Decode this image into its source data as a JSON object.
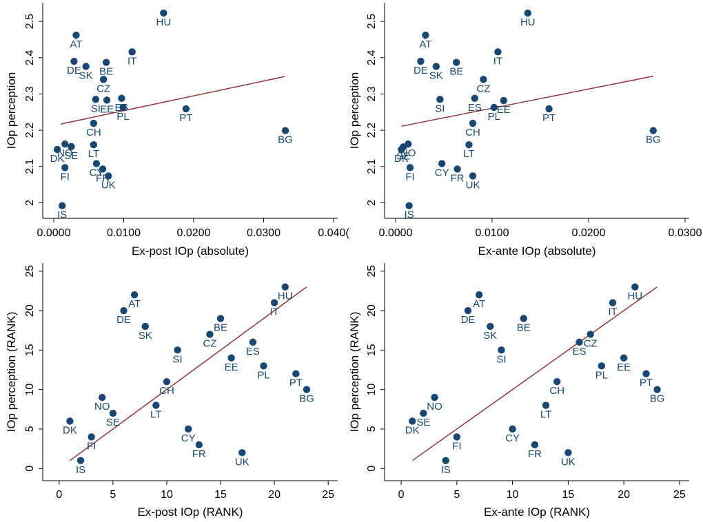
{
  "chart_data": [
    {
      "type": "scatter",
      "xlabel": "Ex-post IOp (absolute)",
      "ylabel": "IOp perception",
      "xlim": [
        0.0,
        0.04
      ],
      "ylim": [
        1.98,
        2.54
      ],
      "xticks": [
        0.0,
        0.01,
        0.02,
        0.03,
        0.04
      ],
      "xtick_labels": [
        "0.0000",
        "0.0100",
        "0.0200",
        "0.0300",
        "0.040("
      ],
      "yticks": [
        2.0,
        2.1,
        2.2,
        2.3,
        2.4,
        2.5
      ],
      "ytick_labels": [
        "2",
        "2.1",
        "2.2",
        "2.3",
        "2.4",
        "2.5"
      ],
      "fit_line": [
        [
          0.001,
          2.217
        ],
        [
          0.033,
          2.348
        ]
      ],
      "points": [
        {
          "label": "HU",
          "x": 0.0157,
          "y": 2.523
        },
        {
          "label": "AT",
          "x": 0.0032,
          "y": 2.462
        },
        {
          "label": "IT",
          "x": 0.0112,
          "y": 2.416
        },
        {
          "label": "DE",
          "x": 0.0029,
          "y": 2.39
        },
        {
          "label": "BE",
          "x": 0.0075,
          "y": 2.387
        },
        {
          "label": "SK",
          "x": 0.0046,
          "y": 2.376
        },
        {
          "label": "CZ",
          "x": 0.0071,
          "y": 2.34
        },
        {
          "label": "SI",
          "x": 0.006,
          "y": 2.285
        },
        {
          "label": "EE",
          "x": 0.0076,
          "y": 2.283
        },
        {
          "label": "ES",
          "x": 0.0097,
          "y": 2.288
        },
        {
          "label": "PL",
          "x": 0.0099,
          "y": 2.263
        },
        {
          "label": "PT",
          "x": 0.0189,
          "y": 2.259
        },
        {
          "label": "CH",
          "x": 0.0057,
          "y": 2.219
        },
        {
          "label": "BG",
          "x": 0.0331,
          "y": 2.199
        },
        {
          "label": "LT",
          "x": 0.0057,
          "y": 2.16
        },
        {
          "label": "NO",
          "x": 0.0016,
          "y": 2.162
        },
        {
          "label": "SE",
          "x": 0.0025,
          "y": 2.155
        },
        {
          "label": "DK",
          "x": 0.0005,
          "y": 2.147
        },
        {
          "label": "CY",
          "x": 0.0061,
          "y": 2.108
        },
        {
          "label": "FI",
          "x": 0.0016,
          "y": 2.097
        },
        {
          "label": "FR",
          "x": 0.007,
          "y": 2.093
        },
        {
          "label": "UK",
          "x": 0.0078,
          "y": 2.074
        },
        {
          "label": "IS",
          "x": 0.0012,
          "y": 1.992
        }
      ]
    },
    {
      "type": "scatter",
      "xlabel": "Ex-ante IOp (absolute)",
      "ylabel": "IOp perception",
      "xlim": [
        0.0,
        0.03
      ],
      "ylim": [
        1.98,
        2.54
      ],
      "xticks": [
        0.0,
        0.01,
        0.02,
        0.03
      ],
      "xtick_labels": [
        "0.0000",
        "0.0100",
        "0.0200",
        "0.0300"
      ],
      "yticks": [
        2.0,
        2.1,
        2.2,
        2.3,
        2.4,
        2.5
      ],
      "ytick_labels": [
        "2",
        "2.1",
        "2.2",
        "2.3",
        "2.4",
        "2.5"
      ],
      "fit_line": [
        [
          0.0006,
          2.211
        ],
        [
          0.0267,
          2.349
        ]
      ],
      "points": [
        {
          "label": "HU",
          "x": 0.0137,
          "y": 2.523
        },
        {
          "label": "AT",
          "x": 0.0031,
          "y": 2.462
        },
        {
          "label": "IT",
          "x": 0.0106,
          "y": 2.416
        },
        {
          "label": "DE",
          "x": 0.0026,
          "y": 2.39
        },
        {
          "label": "BE",
          "x": 0.0063,
          "y": 2.387
        },
        {
          "label": "SK",
          "x": 0.0042,
          "y": 2.376
        },
        {
          "label": "CZ",
          "x": 0.0091,
          "y": 2.34
        },
        {
          "label": "SI",
          "x": 0.0046,
          "y": 2.285
        },
        {
          "label": "ES",
          "x": 0.0082,
          "y": 2.288
        },
        {
          "label": "EE",
          "x": 0.0112,
          "y": 2.282
        },
        {
          "label": "PL",
          "x": 0.0102,
          "y": 2.263
        },
        {
          "label": "PT",
          "x": 0.0159,
          "y": 2.259
        },
        {
          "label": "CH",
          "x": 0.008,
          "y": 2.219
        },
        {
          "label": "BG",
          "x": 0.0267,
          "y": 2.199
        },
        {
          "label": "LT",
          "x": 0.0076,
          "y": 2.16
        },
        {
          "label": "NO",
          "x": 0.0013,
          "y": 2.162
        },
        {
          "label": "SE",
          "x": 0.0008,
          "y": 2.154
        },
        {
          "label": "DK",
          "x": 0.0006,
          "y": 2.147
        },
        {
          "label": "CY",
          "x": 0.0048,
          "y": 2.108
        },
        {
          "label": "FI",
          "x": 0.0015,
          "y": 2.097
        },
        {
          "label": "FR",
          "x": 0.0064,
          "y": 2.093
        },
        {
          "label": "UK",
          "x": 0.008,
          "y": 2.074
        },
        {
          "label": "IS",
          "x": 0.0014,
          "y": 1.992
        }
      ]
    },
    {
      "type": "scatter",
      "xlabel": "Ex-post IOp (RANK)",
      "ylabel": "IOp perception (RANK)",
      "xlim": [
        -0.5,
        25.5
      ],
      "ylim": [
        -0.5,
        25.5
      ],
      "xticks": [
        0,
        5,
        10,
        15,
        20,
        25
      ],
      "xtick_labels": [
        "0",
        "5",
        "10",
        "15",
        "20",
        "25"
      ],
      "yticks": [
        0,
        5,
        10,
        15,
        20,
        25
      ],
      "ytick_labels": [
        "0",
        "5",
        "10",
        "15",
        "20",
        "25"
      ],
      "fit_line": [
        [
          1,
          1
        ],
        [
          23,
          23
        ]
      ],
      "points": [
        {
          "label": "HU",
          "x": 21,
          "y": 23
        },
        {
          "label": "AT",
          "x": 7,
          "y": 22
        },
        {
          "label": "IT",
          "x": 20,
          "y": 21
        },
        {
          "label": "DE",
          "x": 6,
          "y": 20
        },
        {
          "label": "BE",
          "x": 15,
          "y": 19
        },
        {
          "label": "SK",
          "x": 8,
          "y": 18
        },
        {
          "label": "CZ",
          "x": 14,
          "y": 17
        },
        {
          "label": "ES",
          "x": 18,
          "y": 16
        },
        {
          "label": "SI",
          "x": 11,
          "y": 15
        },
        {
          "label": "EE",
          "x": 16,
          "y": 14
        },
        {
          "label": "PL",
          "x": 19,
          "y": 13
        },
        {
          "label": "PT",
          "x": 22,
          "y": 12
        },
        {
          "label": "CH",
          "x": 10,
          "y": 11
        },
        {
          "label": "BG",
          "x": 23,
          "y": 10
        },
        {
          "label": "NO",
          "x": 4,
          "y": 9
        },
        {
          "label": "LT",
          "x": 9,
          "y": 8
        },
        {
          "label": "SE",
          "x": 5,
          "y": 7
        },
        {
          "label": "DK",
          "x": 1,
          "y": 6
        },
        {
          "label": "CY",
          "x": 12,
          "y": 5
        },
        {
          "label": "FI",
          "x": 3,
          "y": 4
        },
        {
          "label": "FR",
          "x": 13,
          "y": 3
        },
        {
          "label": "UK",
          "x": 17,
          "y": 2
        },
        {
          "label": "IS",
          "x": 2,
          "y": 1
        }
      ]
    },
    {
      "type": "scatter",
      "xlabel": "Ex-ante IOp (RANK)",
      "ylabel": "IOp perception (RANK)",
      "xlim": [
        -0.5,
        25.5
      ],
      "ylim": [
        -0.5,
        25.5
      ],
      "xticks": [
        0,
        5,
        10,
        15,
        20,
        25
      ],
      "xtick_labels": [
        "0",
        "5",
        "10",
        "15",
        "20",
        "25"
      ],
      "yticks": [
        0,
        5,
        10,
        15,
        20,
        25
      ],
      "ytick_labels": [
        "0",
        "5",
        "10",
        "15",
        "20",
        "25"
      ],
      "fit_line": [
        [
          1,
          1
        ],
        [
          23,
          23
        ]
      ],
      "points": [
        {
          "label": "HU",
          "x": 21,
          "y": 23
        },
        {
          "label": "AT",
          "x": 7,
          "y": 22
        },
        {
          "label": "IT",
          "x": 19,
          "y": 21
        },
        {
          "label": "DE",
          "x": 6,
          "y": 20
        },
        {
          "label": "BE",
          "x": 11,
          "y": 19
        },
        {
          "label": "SK",
          "x": 8,
          "y": 18
        },
        {
          "label": "CZ",
          "x": 17,
          "y": 17
        },
        {
          "label": "ES",
          "x": 16,
          "y": 16
        },
        {
          "label": "SI",
          "x": 9,
          "y": 15
        },
        {
          "label": "EE",
          "x": 20,
          "y": 14
        },
        {
          "label": "PL",
          "x": 18,
          "y": 13
        },
        {
          "label": "PT",
          "x": 22,
          "y": 12
        },
        {
          "label": "CH",
          "x": 14,
          "y": 11
        },
        {
          "label": "BG",
          "x": 23,
          "y": 10
        },
        {
          "label": "NO",
          "x": 3,
          "y": 9
        },
        {
          "label": "LT",
          "x": 13,
          "y": 8
        },
        {
          "label": "SE",
          "x": 2,
          "y": 7
        },
        {
          "label": "DK",
          "x": 1,
          "y": 6
        },
        {
          "label": "CY",
          "x": 10,
          "y": 5
        },
        {
          "label": "FI",
          "x": 5,
          "y": 4
        },
        {
          "label": "FR",
          "x": 12,
          "y": 3
        },
        {
          "label": "UK",
          "x": 15,
          "y": 2
        },
        {
          "label": "IS",
          "x": 4,
          "y": 1
        }
      ]
    }
  ]
}
